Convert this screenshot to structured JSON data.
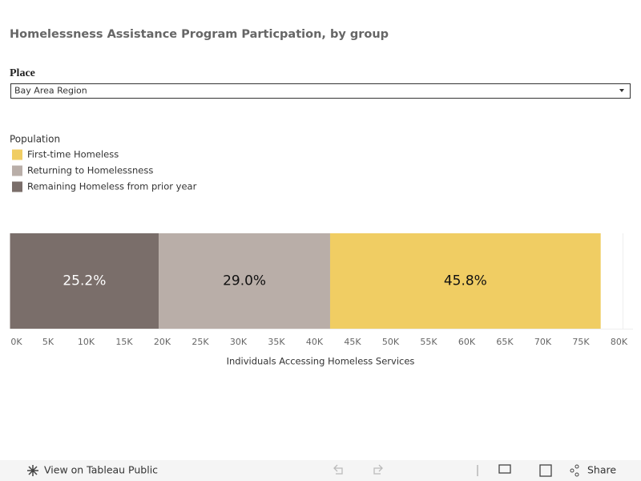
{
  "header": {
    "title": "Homelessness Assistance Program Particpation, by group"
  },
  "filter": {
    "label": "Place",
    "selected": "Bay Area Region"
  },
  "legend": {
    "title": "Population"
  },
  "chart_data": {
    "type": "stacked-bar",
    "orientation": "horizontal",
    "x_label": "Individuals Accessing Homeless Services",
    "series": [
      {
        "name": "First-time Homeless",
        "color": "#f0cd63",
        "values": [
          35550
        ],
        "percent": {
          "value": 45.8,
          "label": "45.8%"
        }
      },
      {
        "name": "Returning to Homelessness",
        "color": "#b9aea8",
        "values": [
          22500
        ],
        "percent": {
          "value": 29,
          "label": "29.0%"
        }
      },
      {
        "name": "Remaining Homeless from prior year",
        "color": "#7a6e6a",
        "values": [
          19550
        ],
        "percent": {
          "value": 25.2,
          "label": "25.2%"
        }
      }
    ],
    "xlim": [
      0,
      80000
    ],
    "xticks": [
      {
        "value": 0,
        "label": "0K"
      },
      {
        "value": 5000,
        "label": "5K"
      },
      {
        "value": 10000,
        "label": "10K"
      },
      {
        "value": 15000,
        "label": "15K"
      },
      {
        "value": 20000,
        "label": "20K"
      },
      {
        "value": 25000,
        "label": "25K"
      },
      {
        "value": 30000,
        "label": "30K"
      },
      {
        "value": 35000,
        "label": "35K"
      },
      {
        "value": 40000,
        "label": "40K"
      },
      {
        "value": 45000,
        "label": "45K"
      },
      {
        "value": 50000,
        "label": "50K"
      },
      {
        "value": 55000,
        "label": "55K"
      },
      {
        "value": 60000,
        "label": "60K"
      },
      {
        "value": 65000,
        "label": "65K"
      },
      {
        "value": 70000,
        "label": "70K"
      },
      {
        "value": 75000,
        "label": "75K"
      },
      {
        "value": 80000,
        "label": "80K"
      }
    ]
  },
  "footer": {
    "link": "View on Tableau Public",
    "share": "Share"
  }
}
